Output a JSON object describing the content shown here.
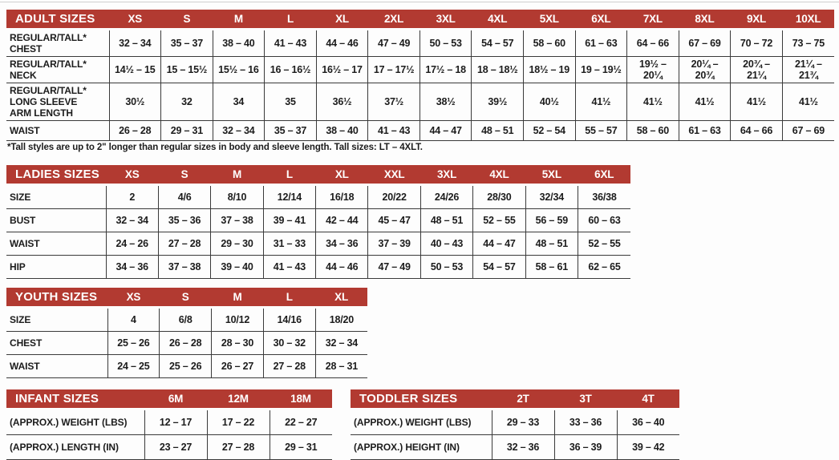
{
  "page": {
    "background": "#fdfdfd",
    "accent_red": "#b23a31",
    "border_color": "#3a3a3a",
    "footnote": "*Tall styles are up to 2\" longer than regular sizes in body and sleeve length. Tall sizes: LT – 4XLT."
  },
  "tables": [
    {
      "id": "adult",
      "title": "ADULT SIZES",
      "columns": [
        "XS",
        "S",
        "M",
        "L",
        "XL",
        "2XL",
        "3XL",
        "4XL",
        "5XL",
        "6XL",
        "7XL",
        "8XL",
        "9XL",
        "10XL"
      ],
      "rows": [
        {
          "label": "REGULAR/TALL*\nCHEST",
          "values": [
            "32 – 34",
            "35 – 37",
            "38 – 40",
            "41 – 43",
            "44 – 46",
            "47 – 49",
            "50 – 53",
            "54 – 57",
            "58 – 60",
            "61 – 63",
            "64 – 66",
            "67 – 69",
            "70 – 72",
            "73 – 75"
          ]
        },
        {
          "label": "REGULAR/TALL*\nNECK",
          "values": [
            "14½ – 15",
            "15 – 15½",
            "15½ – 16",
            "16 – 16½",
            "16½ – 17",
            "17 – 17½",
            "17½ – 18",
            "18 – 18½",
            "18½ – 19",
            "19 – 19½",
            "19½ – 20¼",
            "20¼ – 20¾",
            "20¾ – 21¼",
            "21¼ – 21¾"
          ]
        },
        {
          "label": "REGULAR/TALL*\nLONG SLEEVE\nARM LENGTH",
          "values": [
            "30½",
            "32",
            "34",
            "35",
            "36½",
            "37½",
            "38½",
            "39½",
            "40½",
            "41½",
            "41½",
            "41½",
            "41½",
            "41½"
          ]
        },
        {
          "label": "WAIST",
          "values": [
            "26 – 28",
            "29 – 31",
            "32 – 34",
            "35 – 37",
            "38 – 40",
            "41 – 43",
            "44 – 47",
            "48 – 51",
            "52 – 54",
            "55 – 57",
            "58 – 60",
            "61 – 63",
            "64 – 66",
            "67 – 69"
          ]
        }
      ]
    },
    {
      "id": "ladies",
      "title": "LADIES SIZES",
      "columns": [
        "XS",
        "S",
        "M",
        "L",
        "XL",
        "XXL",
        "3XL",
        "4XL",
        "5XL",
        "6XL"
      ],
      "rows": [
        {
          "label": "SIZE",
          "values": [
            "2",
            "4/6",
            "8/10",
            "12/14",
            "16/18",
            "20/22",
            "24/26",
            "28/30",
            "32/34",
            "36/38"
          ]
        },
        {
          "label": "BUST",
          "values": [
            "32 – 34",
            "35 – 36",
            "37 – 38",
            "39 – 41",
            "42 – 44",
            "45 – 47",
            "48 – 51",
            "52 – 55",
            "56 – 59",
            "60 – 63"
          ]
        },
        {
          "label": "WAIST",
          "values": [
            "24 – 26",
            "27 – 28",
            "29 – 30",
            "31 – 33",
            "34 – 36",
            "37 – 39",
            "40 – 43",
            "44 – 47",
            "48 – 51",
            "52 – 55"
          ]
        },
        {
          "label": "HIP",
          "values": [
            "34 – 36",
            "37 – 38",
            "39 – 40",
            "41 – 43",
            "44 – 46",
            "47 – 49",
            "50 – 53",
            "54 – 57",
            "58 – 61",
            "62 – 65"
          ]
        }
      ]
    },
    {
      "id": "youth",
      "title": "YOUTH SIZES",
      "columns": [
        "XS",
        "S",
        "M",
        "L",
        "XL"
      ],
      "rows": [
        {
          "label": "SIZE",
          "values": [
            "4",
            "6/8",
            "10/12",
            "14/16",
            "18/20"
          ]
        },
        {
          "label": "CHEST",
          "values": [
            "25 – 26",
            "26 – 28",
            "28 – 30",
            "30 – 32",
            "32 – 34"
          ]
        },
        {
          "label": "WAIST",
          "values": [
            "24 – 25",
            "25 – 26",
            "26 – 27",
            "27 – 28",
            "28 – 31"
          ]
        }
      ]
    },
    {
      "id": "infant",
      "title": "INFANT SIZES",
      "columns": [
        "6M",
        "12M",
        "18M"
      ],
      "rows": [
        {
          "label": "(APPROX.) WEIGHT (LBS)",
          "values": [
            "12 – 17",
            "17 – 22",
            "22 – 27"
          ]
        },
        {
          "label": "(APPROX.) LENGTH (IN)",
          "values": [
            "23 – 27",
            "27 – 28",
            "29 – 31"
          ]
        }
      ]
    },
    {
      "id": "toddler",
      "title": "TODDLER SIZES",
      "columns": [
        "2T",
        "3T",
        "4T"
      ],
      "rows": [
        {
          "label": "(APPROX.) WEIGHT (LBS)",
          "values": [
            "29 – 33",
            "33 – 36",
            "36 – 40"
          ]
        },
        {
          "label": "(APPROX.) HEIGHT (IN)",
          "values": [
            "32 – 36",
            "36 – 39",
            "39 – 42"
          ]
        }
      ]
    }
  ]
}
